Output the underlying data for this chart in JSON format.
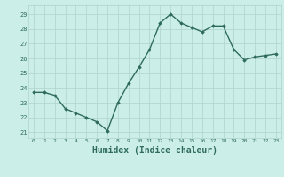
{
  "x": [
    0,
    1,
    2,
    3,
    4,
    5,
    6,
    7,
    8,
    9,
    10,
    11,
    12,
    13,
    14,
    15,
    16,
    17,
    18,
    19,
    20,
    21,
    22,
    23
  ],
  "y": [
    23.7,
    23.7,
    23.5,
    22.6,
    22.3,
    22.0,
    21.7,
    21.1,
    23.0,
    24.3,
    25.4,
    26.6,
    28.4,
    29.0,
    28.4,
    28.1,
    27.8,
    28.2,
    28.2,
    26.6,
    25.9,
    26.1,
    26.2,
    26.3
  ],
  "line_color": "#2e6b5e",
  "marker": "D",
  "marker_size": 1.8,
  "line_width": 1.0,
  "bg_color": "#cceee8",
  "grid_color": "#aed4cc",
  "tick_color": "#2e6b5e",
  "xlabel": "Humidex (Indice chaleur)",
  "xlabel_fontsize": 7,
  "ylabel_ticks": [
    21,
    22,
    23,
    24,
    25,
    26,
    27,
    28,
    29
  ],
  "ylim": [
    20.6,
    29.6
  ],
  "xlim": [
    -0.5,
    23.5
  ]
}
